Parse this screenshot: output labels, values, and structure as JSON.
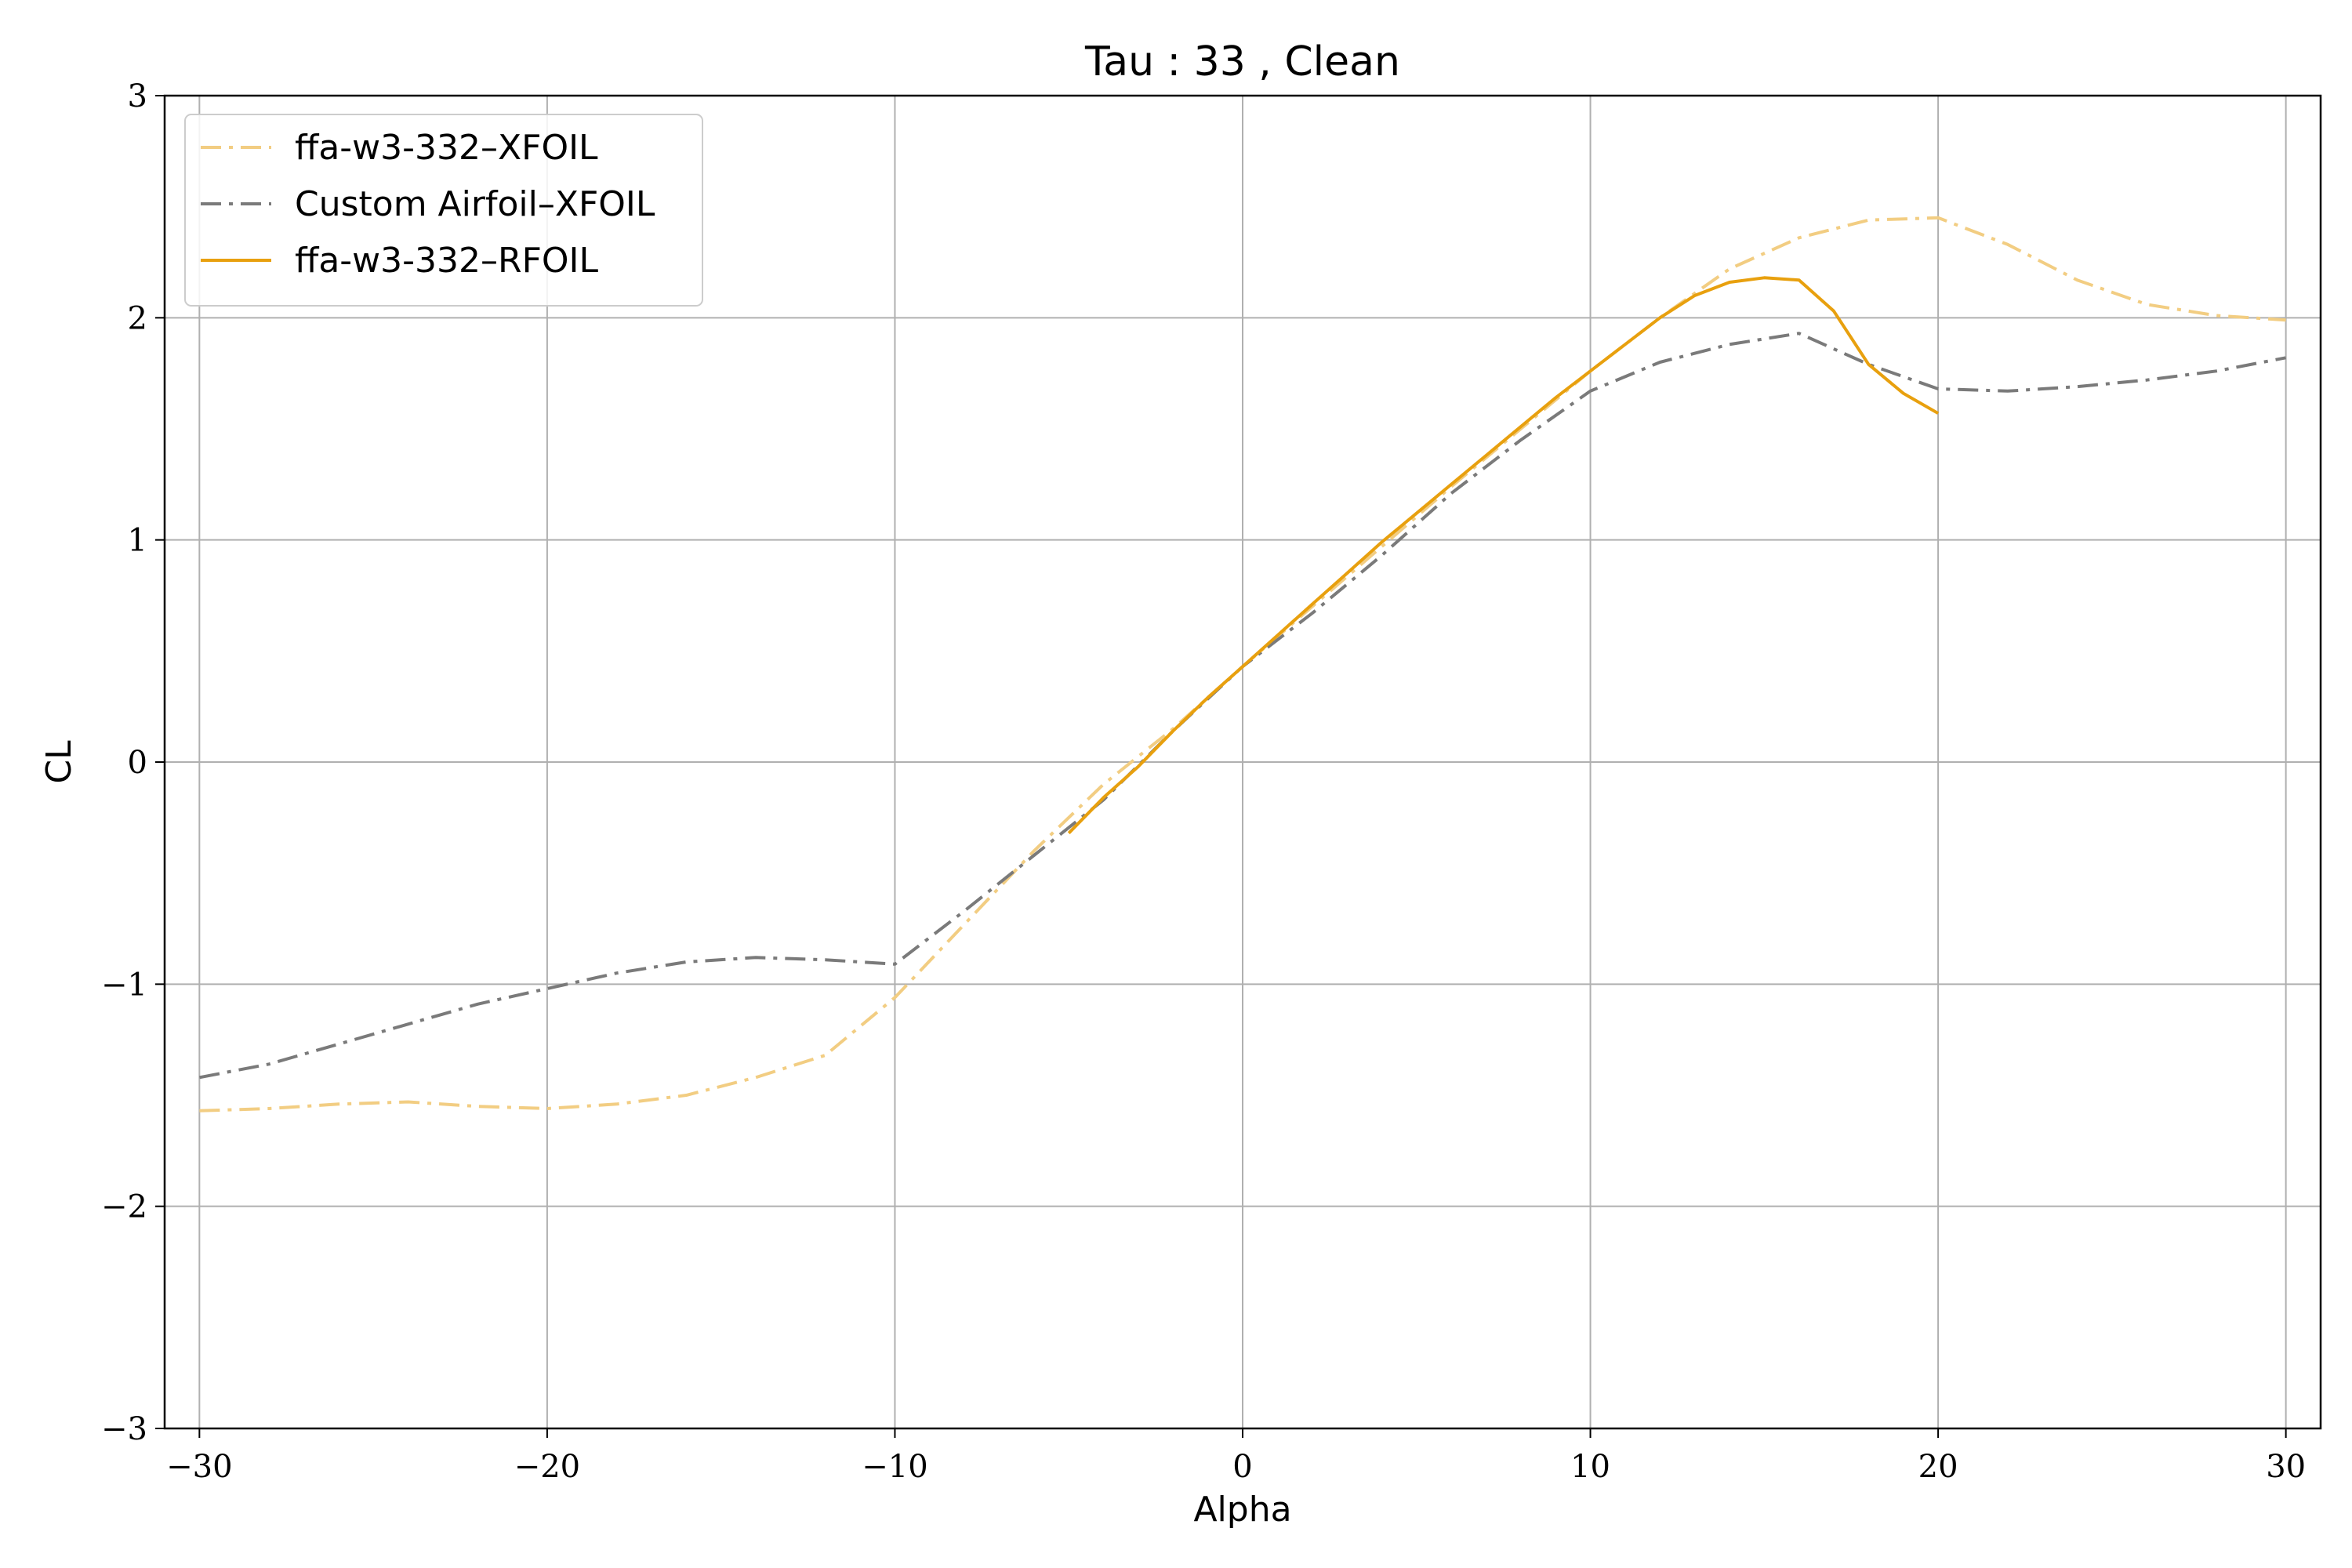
{
  "chart_data": {
    "type": "line",
    "title": "Tau : 33 , Clean",
    "xlabel": "Alpha",
    "ylabel": "CL",
    "xlim": [
      -31,
      31
    ],
    "ylim": [
      -3,
      3
    ],
    "xticks": [
      -30,
      -20,
      -10,
      0,
      10,
      20,
      30
    ],
    "yticks": [
      -3,
      -2,
      -1,
      0,
      1,
      2,
      3
    ],
    "xtick_labels": [
      "−30",
      "−20",
      "−10",
      "0",
      "10",
      "20",
      "30"
    ],
    "ytick_labels": [
      "−3",
      "−2",
      "−1",
      "0",
      "1",
      "2",
      "3"
    ],
    "grid": true,
    "legend_position": "top-left",
    "series": [
      {
        "name": "ffa-w3-332–XFOIL",
        "color": "#f2cd82",
        "style": "dashdot",
        "x": [
          -30,
          -28,
          -26,
          -24,
          -22,
          -20,
          -18,
          -16,
          -14,
          -12,
          -10,
          -8,
          -6,
          -4,
          -2,
          0,
          2,
          4,
          6,
          8,
          10,
          12,
          14,
          16,
          18,
          20,
          22,
          24,
          26,
          28,
          30
        ],
        "y": [
          -1.57,
          -1.56,
          -1.54,
          -1.53,
          -1.55,
          -1.56,
          -1.54,
          -1.5,
          -1.42,
          -1.32,
          -1.06,
          -0.73,
          -0.4,
          -0.1,
          0.15,
          0.43,
          0.7,
          0.97,
          1.24,
          1.5,
          1.76,
          2.0,
          2.22,
          2.36,
          2.44,
          2.45,
          2.33,
          2.17,
          2.06,
          2.01,
          1.99
        ]
      },
      {
        "name": "Custom Airfoil–XFOIL",
        "color": "#7a7a7a",
        "style": "dashdot",
        "x": [
          -30,
          -28,
          -26,
          -24,
          -22,
          -20,
          -18,
          -16,
          -14,
          -12,
          -10,
          -8,
          -6,
          -4,
          -2,
          0,
          2,
          4,
          6,
          8,
          10,
          12,
          14,
          16,
          18,
          20,
          22,
          24,
          26,
          28,
          30
        ],
        "y": [
          -1.42,
          -1.36,
          -1.27,
          -1.18,
          -1.09,
          -1.02,
          -0.95,
          -0.9,
          -0.88,
          -0.89,
          -0.91,
          -0.67,
          -0.42,
          -0.17,
          0.14,
          0.43,
          0.67,
          0.93,
          1.21,
          1.45,
          1.67,
          1.8,
          1.88,
          1.93,
          1.79,
          1.68,
          1.67,
          1.69,
          1.72,
          1.76,
          1.82
        ]
      },
      {
        "name": "ffa-w3-332–RFOIL",
        "color": "#e8a00e",
        "style": "solid",
        "x": [
          -5,
          -4,
          -3,
          -2,
          -1,
          0,
          1,
          2,
          3,
          4,
          5,
          6,
          7,
          8,
          9,
          10,
          11,
          12,
          13,
          14,
          15,
          16,
          17,
          18,
          19,
          20
        ],
        "y": [
          -0.32,
          -0.16,
          -0.02,
          0.14,
          0.29,
          0.43,
          0.57,
          0.71,
          0.85,
          0.99,
          1.12,
          1.25,
          1.38,
          1.51,
          1.64,
          1.76,
          1.88,
          2.0,
          2.1,
          2.16,
          2.18,
          2.17,
          2.03,
          1.79,
          1.66,
          1.57
        ]
      }
    ]
  }
}
